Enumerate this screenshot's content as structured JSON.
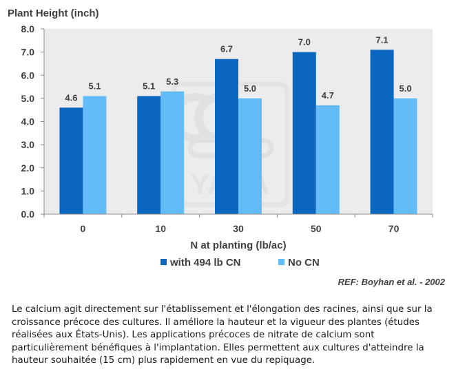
{
  "chart_data": {
    "type": "bar",
    "ylabel": "Plant Height (inch)",
    "xlabel": "N at planting (lb/ac)",
    "categories": [
      "0",
      "10",
      "30",
      "50",
      "70"
    ],
    "series": [
      {
        "name": "with 494 lb CN",
        "values": [
          4.6,
          5.1,
          6.7,
          7.0,
          7.1
        ],
        "labels": [
          "4.6",
          "5.1",
          "6.7",
          "7.0",
          "7.1"
        ],
        "color": "#0a66bf"
      },
      {
        "name": "No CN",
        "values": [
          5.1,
          5.3,
          5.0,
          4.7,
          5.0
        ],
        "labels": [
          "5.1",
          "5.3",
          "5.0",
          "4.7",
          "5.0"
        ],
        "color": "#63bcf7"
      }
    ],
    "ylim": [
      0,
      8
    ],
    "yticks": [
      "0.0",
      "1.0",
      "2.0",
      "3.0",
      "4.0",
      "5.0",
      "6.0",
      "7.0",
      "8.0"
    ],
    "grid": false,
    "legend": "bottom",
    "plot_background": "#ececec",
    "watermark": "YARA",
    "reference": "REF: Boyhan et al. - 2002"
  },
  "caption": "Le calcium agit directement sur l'établissement et l'élongation des racines, ainsi que sur la croissance précoce des cultures. Il améliore la hauteur et la vigueur des plantes (études réalisées aux États-Unis). Les applications précoces de nitrate de calcium sont particulièrement bénéfiques à l'implantation. Elles permettent aux cultures d'atteindre la hauteur souhaitée (15 cm) plus rapidement en vue du repiquage."
}
